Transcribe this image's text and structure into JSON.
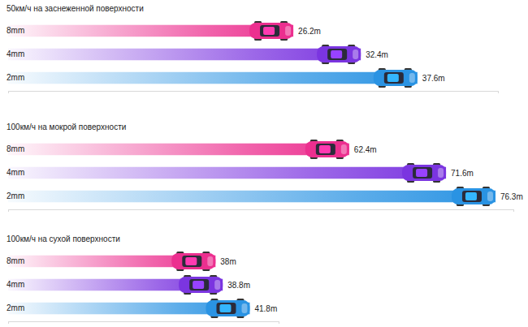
{
  "chart_data": [
    {
      "type": "bar",
      "orientation": "horizontal",
      "title": "50км/ч на заснеженной поверхности",
      "categories": [
        "8mm",
        "4mm",
        "2mm"
      ],
      "values": [
        26.2,
        32.4,
        37.6
      ],
      "value_labels": [
        "26.2m",
        "32.4m",
        "37.6m"
      ],
      "data_labels": true,
      "colors": [
        "#ec2f8f",
        "#7b35e0",
        "#2a93e3"
      ],
      "xlim": [
        0,
        45
      ],
      "xticks": [
        0,
        45
      ],
      "tick_labels": "y"
    },
    {
      "type": "bar",
      "orientation": "horizontal",
      "title": "100км/ч на мокрой поверхности",
      "categories": [
        "8mm",
        "4mm",
        "2mm"
      ],
      "values": [
        62.4,
        71.6,
        76.3
      ],
      "value_labels": [
        "62.4m",
        "71.6m",
        "76.3m"
      ],
      "data_labels": true,
      "colors": [
        "#ec2f8f",
        "#7b35e0",
        "#2a93e3"
      ],
      "xlim": [
        30,
        78
      ],
      "xticks": [
        30,
        78
      ],
      "tick_labels": "y"
    },
    {
      "type": "bar",
      "orientation": "horizontal",
      "title": "100км/ч на сухой поверхности",
      "categories": [
        "8mm",
        "4mm",
        "2mm"
      ],
      "values": [
        38,
        38.8,
        41.8
      ],
      "value_labels": [
        "38m",
        "38.8m",
        "41.8m"
      ],
      "data_labels": true,
      "colors": [
        "#ec2f8f",
        "#7b35e0",
        "#2a93e3"
      ],
      "xlim": [
        15,
        45
      ],
      "xticks": [
        15,
        45
      ],
      "tick_labels": "y"
    }
  ]
}
